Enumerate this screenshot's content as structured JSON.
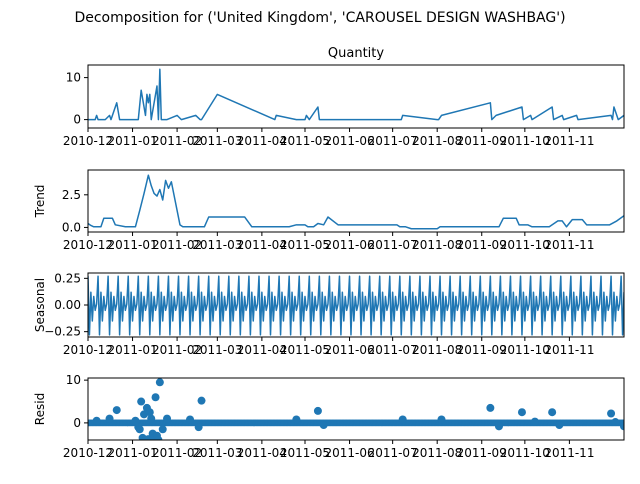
{
  "figure": {
    "title": "Decomposition for ('United Kingdom', 'CAROUSEL DESIGN WASHBAG')",
    "line_color": "#1f77b4"
  },
  "chart_data": [
    {
      "type": "line",
      "title": "Quantity",
      "ylabel": "",
      "xlim": [
        "2010-12-01",
        "2011-12-09"
      ],
      "ylim": [
        -2,
        13
      ],
      "yticks": [
        0,
        10
      ],
      "xticks": [
        "2010-12",
        "2011-01",
        "2011-02",
        "2011-03",
        "2011-04",
        "2011-05",
        "2011-06",
        "2011-07",
        "2011-08",
        "2011-09",
        "2011-10",
        "2011-11"
      ],
      "x": [
        "2010-12-01",
        "2010-12-06",
        "2010-12-07",
        "2010-12-08",
        "2010-12-13",
        "2010-12-16",
        "2010-12-17",
        "2010-12-21",
        "2010-12-23",
        "2011-01-05",
        "2011-01-07",
        "2011-01-10",
        "2011-01-11",
        "2011-01-12",
        "2011-01-13",
        "2011-01-14",
        "2011-01-18",
        "2011-01-19",
        "2011-01-20",
        "2011-01-21",
        "2011-01-25",
        "2011-02-01",
        "2011-02-04",
        "2011-02-14",
        "2011-02-17",
        "2011-02-18",
        "2011-03-01",
        "2011-04-10",
        "2011-04-11",
        "2011-04-25",
        "2011-05-01",
        "2011-05-02",
        "2011-05-04",
        "2011-05-10",
        "2011-05-11",
        "2011-07-07",
        "2011-07-08",
        "2011-08-01",
        "2011-08-02",
        "2011-08-04",
        "2011-09-07",
        "2011-09-08",
        "2011-09-11",
        "2011-09-29",
        "2011-09-30",
        "2011-10-05",
        "2011-10-06",
        "2011-10-20",
        "2011-10-21",
        "2011-10-27",
        "2011-10-28",
        "2011-11-06",
        "2011-11-07",
        "2011-11-30",
        "2011-12-01",
        "2011-12-02",
        "2011-12-05",
        "2011-12-09"
      ],
      "values": [
        0,
        0,
        1,
        0,
        0,
        1,
        0,
        4,
        0,
        0,
        7,
        1,
        6,
        4,
        6,
        0,
        8,
        0,
        12,
        0,
        0,
        1,
        0,
        1,
        0,
        0,
        6,
        0,
        1,
        0,
        0,
        1,
        0,
        3,
        0,
        0,
        1,
        0,
        0,
        1,
        4,
        0,
        1,
        3,
        0,
        1,
        0,
        3,
        0,
        1,
        0,
        1,
        0,
        1,
        0,
        3,
        0,
        1
      ]
    },
    {
      "type": "line",
      "title": "",
      "ylabel": "Trend",
      "xlim": [
        "2010-12-01",
        "2011-12-09"
      ],
      "ylim": [
        -0.35,
        4.4
      ],
      "yticks": [
        0.0,
        2.5
      ],
      "ytick_labels": [
        "0.0",
        "2.5"
      ],
      "xticks": [
        "2010-12",
        "2011-01",
        "2011-02",
        "2011-03",
        "2011-04",
        "2011-05",
        "2011-06",
        "2011-07",
        "2011-08",
        "2011-09",
        "2011-10",
        "2011-11"
      ],
      "x": [
        "2010-12-01",
        "2010-12-03",
        "2010-12-05",
        "2010-12-10",
        "2010-12-12",
        "2010-12-18",
        "2010-12-20",
        "2010-12-27",
        "2010-12-30",
        "2011-01-03",
        "2011-01-06",
        "2011-01-09",
        "2011-01-12",
        "2011-01-14",
        "2011-01-16",
        "2011-01-18",
        "2011-01-20",
        "2011-01-22",
        "2011-01-24",
        "2011-01-26",
        "2011-01-28",
        "2011-02-03",
        "2011-02-05",
        "2011-02-13",
        "2011-02-15",
        "2011-02-20",
        "2011-02-23",
        "2011-03-20",
        "2011-03-25",
        "2011-04-05",
        "2011-04-10",
        "2011-04-20",
        "2011-04-25",
        "2011-05-01",
        "2011-05-03",
        "2011-05-07",
        "2011-05-10",
        "2011-05-14",
        "2011-05-17",
        "2011-05-24",
        "2011-06-01",
        "2011-07-04",
        "2011-07-06",
        "2011-07-10",
        "2011-07-14",
        "2011-08-01",
        "2011-08-03",
        "2011-08-07",
        "2011-08-10",
        "2011-09-03",
        "2011-09-06",
        "2011-09-13",
        "2011-09-16",
        "2011-09-25",
        "2011-09-27",
        "2011-10-03",
        "2011-10-06",
        "2011-10-16",
        "2011-10-18",
        "2011-10-24",
        "2011-10-27",
        "2011-10-30",
        "2011-11-03",
        "2011-11-10",
        "2011-11-13",
        "2011-11-26",
        "2011-11-29",
        "2011-12-04",
        "2011-12-09"
      ],
      "values": [
        0.3,
        0.15,
        0.05,
        0.05,
        0.7,
        0.7,
        0.2,
        0.05,
        0.05,
        0.05,
        1.3,
        2.6,
        4.0,
        3.2,
        2.6,
        2.4,
        2.9,
        2.1,
        3.6,
        3.0,
        3.5,
        0.2,
        0.05,
        0.05,
        0.05,
        0.05,
        0.8,
        0.8,
        0.05,
        0.05,
        0.05,
        0.05,
        0.2,
        0.2,
        0.05,
        0.05,
        0.3,
        0.2,
        0.8,
        0.2,
        0.2,
        0.2,
        0.05,
        0.05,
        -0.1,
        -0.1,
        0.05,
        0.05,
        0.05,
        0.05,
        0.05,
        0.05,
        0.7,
        0.7,
        0.2,
        0.2,
        0.05,
        0.05,
        0.05,
        0.5,
        0.5,
        0.05,
        0.6,
        0.6,
        0.2,
        0.2,
        0.2,
        0.5,
        0.9
      ]
    },
    {
      "type": "line",
      "title": "",
      "ylabel": "Seasonal",
      "xlim": [
        "2010-12-01",
        "2011-12-09"
      ],
      "ylim": [
        -0.3,
        0.3
      ],
      "yticks": [
        0.25,
        0.0,
        -0.25
      ],
      "ytick_labels": [
        "0.25",
        "0.00",
        "−0.25"
      ],
      "xticks": [
        "2010-12",
        "2011-01",
        "2011-02",
        "2011-03",
        "2011-04",
        "2011-05",
        "2011-06",
        "2011-07",
        "2011-08",
        "2011-09",
        "2011-10",
        "2011-11"
      ],
      "pattern_period_days": 7,
      "pattern": [
        0.27,
        -0.28,
        0.12,
        -0.15,
        0.08,
        -0.05,
        0.01
      ]
    },
    {
      "type": "scatter",
      "title": "",
      "ylabel": "Resid",
      "xlim": [
        "2010-12-01",
        "2011-12-09"
      ],
      "ylim": [
        -4,
        10.5
      ],
      "yticks": [
        0,
        10
      ],
      "xticks": [
        "2010-12",
        "2011-01",
        "2011-02",
        "2011-03",
        "2011-04",
        "2011-05",
        "2011-06",
        "2011-07",
        "2011-08",
        "2011-09",
        "2011-10",
        "2011-11"
      ],
      "baseline": 0,
      "x": [
        "2010-12-07",
        "2010-12-16",
        "2010-12-21",
        "2011-01-03",
        "2011-01-05",
        "2011-01-06",
        "2011-01-07",
        "2011-01-08",
        "2011-01-09",
        "2011-01-10",
        "2011-01-11",
        "2011-01-12",
        "2011-01-13",
        "2011-01-14",
        "2011-01-15",
        "2011-01-16",
        "2011-01-17",
        "2011-01-18",
        "2011-01-19",
        "2011-01-20",
        "2011-01-22",
        "2011-01-25",
        "2011-02-10",
        "2011-02-16",
        "2011-02-18",
        "2011-04-25",
        "2011-05-10",
        "2011-05-14",
        "2011-07-08",
        "2011-08-04",
        "2011-09-07",
        "2011-09-13",
        "2011-09-29",
        "2011-10-08",
        "2011-10-20",
        "2011-10-25",
        "2011-11-30",
        "2011-12-03",
        "2011-12-09"
      ],
      "values": [
        0.5,
        1.0,
        3.0,
        0.5,
        -1.0,
        -1.5,
        5.0,
        -3.5,
        2.0,
        -4.0,
        3.5,
        -3.8,
        2.5,
        1.0,
        -2.5,
        -3.5,
        6.0,
        -3.0,
        -4.0,
        9.5,
        -1.5,
        1.0,
        0.8,
        -1.0,
        5.2,
        0.8,
        2.8,
        -0.5,
        0.8,
        0.8,
        3.5,
        -0.8,
        2.5,
        0.3,
        2.5,
        -0.5,
        2.2,
        0.2,
        -0.8
      ]
    }
  ]
}
